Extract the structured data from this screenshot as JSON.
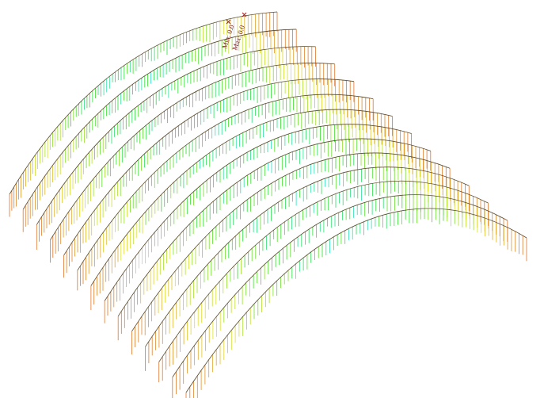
{
  "labels": {
    "min": "Min: 0.0",
    "max": "Max: 0.0"
  }
}
